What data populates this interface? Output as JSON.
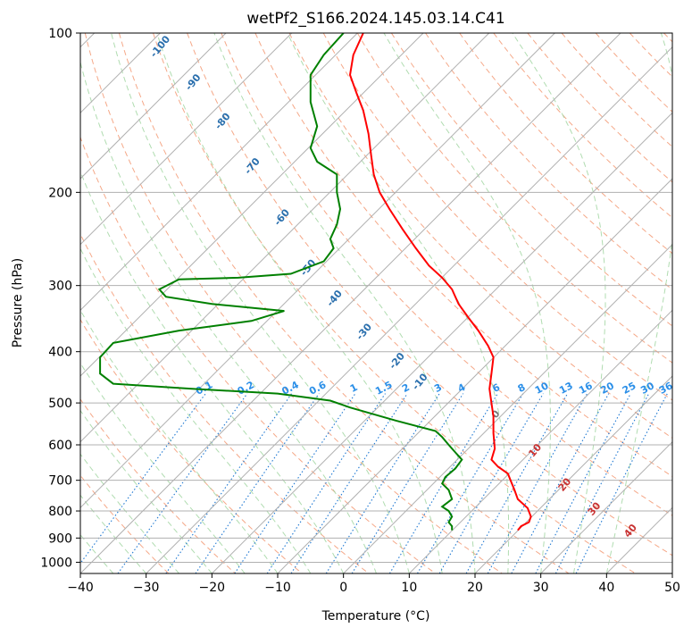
{
  "chart_data": {
    "type": "line",
    "title": "wetPf2_S166.2024.145.03.14.C41",
    "xlabel": "Temperature (°C)",
    "ylabel": "Pressure (hPa)",
    "xlim": [
      -40,
      50
    ],
    "ylim": [
      1050,
      100
    ],
    "y_scale": "log",
    "grid": true,
    "x_ticks": [
      "−40",
      "−30",
      "−20",
      "−10",
      "0",
      "10",
      "20",
      "30",
      "40",
      "50"
    ],
    "x_tick_values": [
      -40,
      -30,
      -20,
      -10,
      0,
      10,
      20,
      30,
      40,
      50
    ],
    "y_ticks": [
      "100",
      "200",
      "300",
      "400",
      "500",
      "600",
      "700",
      "800",
      "900",
      "1000"
    ],
    "y_tick_values": [
      100,
      200,
      300,
      400,
      500,
      600,
      700,
      800,
      900,
      1000
    ],
    "dry_adiabat_labels": [
      "-100",
      "-90",
      "-80",
      "-70",
      "-60",
      "-50",
      "-40",
      "-30",
      "-20",
      "-10",
      "0",
      "10",
      "20",
      "30",
      "40"
    ],
    "mixing_ratio_labels": [
      "0.1",
      "0.2",
      "0.4",
      "0.6",
      "1",
      "1.5",
      "2",
      "3",
      "4",
      "6",
      "8",
      "10",
      "13",
      "16",
      "20",
      "25",
      "30",
      "36"
    ],
    "series": [
      {
        "role": "temperature",
        "color": "#ff0000",
        "points": [
          [
            3,
            100
          ],
          [
            1.5,
            110
          ],
          [
            1,
            120
          ],
          [
            2,
            130
          ],
          [
            3,
            140
          ],
          [
            3.8,
            155
          ],
          [
            4.2,
            170
          ],
          [
            4.6,
            185
          ],
          [
            5.5,
            200
          ],
          [
            7,
            215
          ],
          [
            9,
            235
          ],
          [
            11,
            255
          ],
          [
            13,
            275
          ],
          [
            15,
            290
          ],
          [
            16.5,
            305
          ],
          [
            17.5,
            325
          ],
          [
            19,
            345
          ],
          [
            20.5,
            365
          ],
          [
            22,
            390
          ],
          [
            22.8,
            410
          ],
          [
            22.5,
            440
          ],
          [
            22.2,
            470
          ],
          [
            22.5,
            500
          ],
          [
            22.8,
            530
          ],
          [
            22.8,
            570
          ],
          [
            23,
            610
          ],
          [
            22.5,
            640
          ],
          [
            23.5,
            660
          ],
          [
            25,
            680
          ],
          [
            25.5,
            705
          ],
          [
            26,
            730
          ],
          [
            26.5,
            760
          ],
          [
            28,
            790
          ],
          [
            28.5,
            820
          ],
          [
            28.2,
            840
          ],
          [
            27,
            855
          ],
          [
            26.5,
            870
          ]
        ]
      },
      {
        "role": "dewpoint",
        "color": "#008000",
        "points": [
          [
            0,
            100
          ],
          [
            -3,
            110
          ],
          [
            -5,
            120
          ],
          [
            -5,
            135
          ],
          [
            -4,
            150
          ],
          [
            -5,
            165
          ],
          [
            -4,
            175
          ],
          [
            -1,
            185
          ],
          [
            -1,
            200
          ],
          [
            -0.5,
            215
          ],
          [
            -1,
            230
          ],
          [
            -2,
            245
          ],
          [
            -1.5,
            255
          ],
          [
            -3,
            270
          ],
          [
            -8,
            285
          ],
          [
            -16,
            290
          ],
          [
            -25,
            292
          ],
          [
            -28,
            305
          ],
          [
            -27,
            315
          ],
          [
            -20,
            325
          ],
          [
            -9,
            335
          ],
          [
            -14,
            350
          ],
          [
            -25,
            365
          ],
          [
            -35,
            385
          ],
          [
            -37,
            410
          ],
          [
            -37,
            440
          ],
          [
            -35,
            460
          ],
          [
            -23,
            470
          ],
          [
            -10,
            480
          ],
          [
            -2,
            495
          ],
          [
            1,
            510
          ],
          [
            8,
            540
          ],
          [
            14,
            565
          ],
          [
            15,
            580
          ],
          [
            16,
            600
          ],
          [
            17,
            620
          ],
          [
            18,
            640
          ],
          [
            17,
            665
          ],
          [
            15.5,
            690
          ],
          [
            15,
            710
          ],
          [
            16,
            730
          ],
          [
            16.5,
            760
          ],
          [
            15,
            785
          ],
          [
            16,
            800
          ],
          [
            16.5,
            820
          ],
          [
            16,
            840
          ],
          [
            16.5,
            855
          ],
          [
            16.5,
            870
          ]
        ]
      }
    ]
  }
}
